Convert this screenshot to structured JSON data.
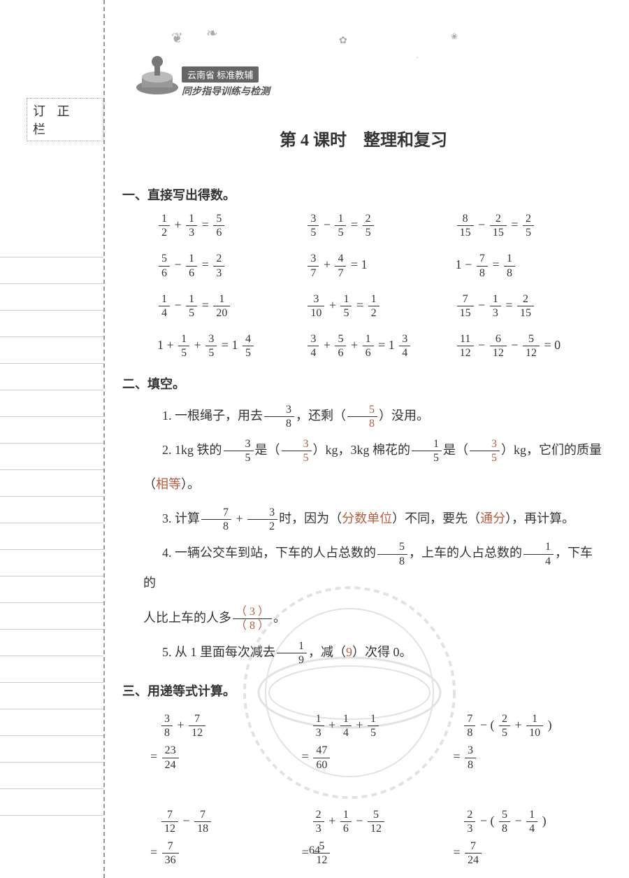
{
  "margin_label": "订 正 栏",
  "header": {
    "banner_top": "云南省 标准教辅",
    "banner_sub": "同步指导训练与检测"
  },
  "title": "第 4 课时　整理和复习",
  "section1": {
    "heading": "一、直接写出得数。",
    "rows": [
      [
        {
          "a": {
            "n": "1",
            "d": "2"
          },
          "op": "+",
          "b": {
            "n": "1",
            "d": "3"
          },
          "r": {
            "n": "5",
            "d": "6"
          }
        },
        {
          "a": {
            "n": "3",
            "d": "5"
          },
          "op": "−",
          "b": {
            "n": "1",
            "d": "5"
          },
          "r": {
            "n": "2",
            "d": "5"
          }
        },
        {
          "a": {
            "n": "8",
            "d": "15"
          },
          "op": "−",
          "b": {
            "n": "2",
            "d": "15"
          },
          "r": {
            "n": "2",
            "d": "5"
          }
        }
      ],
      [
        {
          "a": {
            "n": "5",
            "d": "6"
          },
          "op": "−",
          "b": {
            "n": "1",
            "d": "6"
          },
          "r": {
            "n": "2",
            "d": "3"
          }
        },
        {
          "a": {
            "n": "3",
            "d": "7"
          },
          "op": "+",
          "b": {
            "n": "4",
            "d": "7"
          },
          "rplain": "1"
        },
        {
          "aplain": "1",
          "op": "−",
          "b": {
            "n": "7",
            "d": "8"
          },
          "r": {
            "n": "1",
            "d": "8"
          }
        }
      ],
      [
        {
          "a": {
            "n": "1",
            "d": "4"
          },
          "op": "−",
          "b": {
            "n": "1",
            "d": "5"
          },
          "r": {
            "n": "1",
            "d": "20"
          }
        },
        {
          "a": {
            "n": "3",
            "d": "10"
          },
          "op": "+",
          "b": {
            "n": "1",
            "d": "5"
          },
          "r": {
            "n": "1",
            "d": "2"
          }
        },
        {
          "a": {
            "n": "7",
            "d": "15"
          },
          "op": "−",
          "b": {
            "n": "1",
            "d": "3"
          },
          "r": {
            "n": "2",
            "d": "15"
          }
        }
      ],
      [
        {
          "aplain": "1",
          "op": "+",
          "b": {
            "n": "1",
            "d": "5"
          },
          "op2": "+",
          "c": {
            "n": "3",
            "d": "5"
          },
          "rmixed": {
            "w": "1",
            "n": "4",
            "d": "5"
          }
        },
        {
          "a": {
            "n": "3",
            "d": "4"
          },
          "op": "+",
          "b": {
            "n": "5",
            "d": "6"
          },
          "op2": "+",
          "c": {
            "n": "1",
            "d": "6"
          },
          "rmixed": {
            "w": "1",
            "n": "3",
            "d": "4"
          }
        },
        {
          "a": {
            "n": "11",
            "d": "12"
          },
          "op": "−",
          "b": {
            "n": "6",
            "d": "12"
          },
          "op2": "−",
          "c": {
            "n": "5",
            "d": "12"
          },
          "rplain": "0"
        }
      ]
    ]
  },
  "section2": {
    "heading": "二、填空。",
    "q1": {
      "pre": "1. 一根绳子，用去",
      "f": {
        "n": "3",
        "d": "8"
      },
      "mid": "，还剩（",
      "ans": {
        "n": "5",
        "d": "8"
      },
      "post": "）没用。"
    },
    "q2": {
      "pre": "2. 1kg 铁的",
      "f1": {
        "n": "3",
        "d": "5"
      },
      "mid1": "是（",
      "ans1": {
        "n": "3",
        "d": "5"
      },
      "mid2": "）kg，3kg 棉花的",
      "f2": {
        "n": "1",
        "d": "5"
      },
      "mid3": "是（",
      "ans2": {
        "n": "3",
        "d": "5"
      },
      "post": "）kg，它们的质量",
      "cont": "（",
      "ans3": "相等",
      "cont2": "）。"
    },
    "q3": {
      "pre": "3. 计算",
      "f1": {
        "n": "7",
        "d": "8"
      },
      "op": "+",
      "f2": {
        "n": "3",
        "d": "2"
      },
      "mid": "时，因为（",
      "ans1": "分数单位",
      "mid2": "）不同，要先（",
      "ans2": "通分",
      "post": "），再计算。"
    },
    "q4": {
      "pre": "4. 一辆公交车到站，下车的人占总数的",
      "f1": {
        "n": "5",
        "d": "8"
      },
      "mid": "，上车的人占总数的",
      "f2": {
        "n": "1",
        "d": "4"
      },
      "post": "，下车的",
      "cont": "人比上车的人多",
      "ansf": {
        "n": "（ 3 ）",
        "d": "（ 8 ）"
      },
      "end": "。"
    },
    "q5": {
      "pre": "5. 从 1 里面每次减去",
      "f": {
        "n": "1",
        "d": "9"
      },
      "mid": "，减（",
      "ans": "9",
      "post": "）次得 0。"
    }
  },
  "section3": {
    "heading": "三、用递等式计算。",
    "rows": [
      [
        {
          "expr": [
            {
              "n": "3",
              "d": "8"
            },
            "+",
            {
              "n": "7",
              "d": "12"
            }
          ],
          "res": {
            "n": "23",
            "d": "24"
          }
        },
        {
          "expr": [
            {
              "n": "1",
              "d": "3"
            },
            "+",
            {
              "n": "1",
              "d": "4"
            },
            "+",
            {
              "n": "1",
              "d": "5"
            }
          ],
          "res": {
            "n": "47",
            "d": "60"
          }
        },
        {
          "expr": [
            {
              "n": "7",
              "d": "8"
            },
            "− (",
            {
              "n": "2",
              "d": "5"
            },
            "+",
            {
              "n": "1",
              "d": "10"
            },
            ")"
          ],
          "res": {
            "n": "3",
            "d": "8"
          }
        }
      ],
      [
        {
          "expr": [
            {
              "n": "7",
              "d": "12"
            },
            "−",
            {
              "n": "7",
              "d": "18"
            }
          ],
          "res": {
            "n": "7",
            "d": "36"
          }
        },
        {
          "expr": [
            {
              "n": "2",
              "d": "3"
            },
            "+",
            {
              "n": "1",
              "d": "6"
            },
            "−",
            {
              "n": "5",
              "d": "12"
            }
          ],
          "res": {
            "n": "5",
            "d": "12"
          }
        },
        {
          "expr": [
            {
              "n": "2",
              "d": "3"
            },
            "− (",
            {
              "n": "5",
              "d": "8"
            },
            "−",
            {
              "n": "1",
              "d": "4"
            },
            ")"
          ],
          "res": {
            "n": "7",
            "d": "24"
          }
        }
      ]
    ]
  },
  "page_number": "64",
  "colors": {
    "answer": "#b85c3e",
    "text": "#333333",
    "rule": "#cccccc"
  }
}
